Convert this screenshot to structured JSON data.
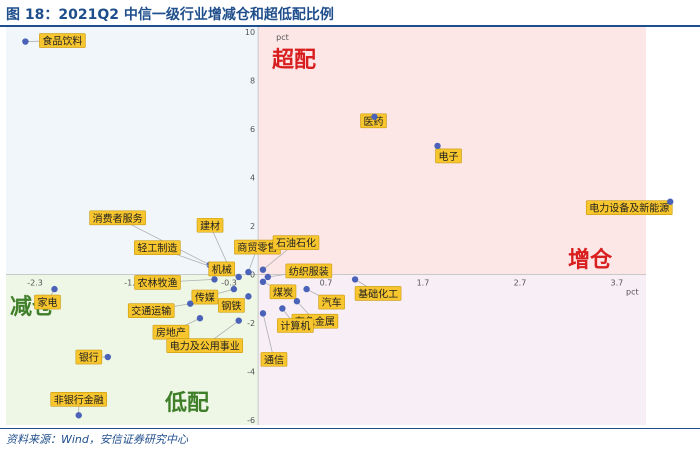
{
  "header": {
    "title": "图 18：2021Q2 中信一级行业增减仓和超低配比例"
  },
  "footer": {
    "source": "资料来源：Wind，安信证券研究中心"
  },
  "quadrants": {
    "overweight": "超配",
    "increase": "增仓",
    "decrease": "减仓",
    "underweight": "低配"
  },
  "colors": {
    "top_left": "#f1f6fb",
    "top_right": "#fde6e6",
    "bottom_left": "#eef6e6",
    "bottom_right": "#f7eef6",
    "point": "#4a63b8",
    "label_bg": "#f7c52d",
    "label_border": "#c99a10",
    "overweight_text": "#d81e1e",
    "increase_text": "#d81e1e",
    "decrease_text": "#3f7f2a",
    "underweight_text": "#3f7f2a"
  },
  "chart_data": {
    "type": "scatter",
    "title": "2021Q2 中信一级行业增减仓和超低配比例",
    "xlabel": "pct",
    "ylabel": "pct",
    "xlim": [
      -2.6,
      4.0
    ],
    "ylim": [
      -6.2,
      10.2
    ],
    "xticks": [
      -2.3,
      -1.3,
      -0.3,
      0.7,
      1.7,
      2.7,
      3.7
    ],
    "yticks": [
      -6,
      -4,
      -2,
      0,
      2,
      4,
      6,
      8,
      10
    ],
    "points": [
      {
        "name": "食品饮料",
        "x": -2.4,
        "y": 9.6
      },
      {
        "name": "医药",
        "x": 1.2,
        "y": 6.5
      },
      {
        "name": "电子",
        "x": 1.85,
        "y": 5.3
      },
      {
        "name": "电力设备及新能源",
        "x": 4.25,
        "y": 3.0
      },
      {
        "name": "消费者服务",
        "x": -0.5,
        "y": 0.4
      },
      {
        "name": "建材",
        "x": -0.3,
        "y": 0.3
      },
      {
        "name": "轻工制造",
        "x": -0.4,
        "y": 0.2
      },
      {
        "name": "商贸零售",
        "x": -0.1,
        "y": 0.1
      },
      {
        "name": "机械",
        "x": -0.2,
        "y": -0.1
      },
      {
        "name": "农林牧渔",
        "x": -0.45,
        "y": -0.2
      },
      {
        "name": "石油石化",
        "x": 0.05,
        "y": 0.2
      },
      {
        "name": "纺织服装",
        "x": 0.1,
        "y": -0.1
      },
      {
        "name": "煤炭",
        "x": 0.05,
        "y": -0.3
      },
      {
        "name": "传媒",
        "x": -0.25,
        "y": -0.6
      },
      {
        "name": "钢铁",
        "x": -0.1,
        "y": -0.9
      },
      {
        "name": "汽车",
        "x": 0.5,
        "y": -0.6
      },
      {
        "name": "基础化工",
        "x": 1.0,
        "y": -0.2
      },
      {
        "name": "有色金属",
        "x": 0.4,
        "y": -1.1
      },
      {
        "name": "计算机",
        "x": 0.25,
        "y": -1.4
      },
      {
        "name": "家电",
        "x": -2.1,
        "y": -0.6
      },
      {
        "name": "交通运输",
        "x": -0.7,
        "y": -1.2
      },
      {
        "name": "房地产",
        "x": -0.6,
        "y": -1.8
      },
      {
        "name": "电力及公用事业",
        "x": -0.2,
        "y": -1.9
      },
      {
        "name": "通信",
        "x": 0.05,
        "y": -1.6
      },
      {
        "name": "银行",
        "x": -1.55,
        "y": -3.4
      },
      {
        "name": "非银行金融",
        "x": -1.85,
        "y": -5.8
      }
    ]
  }
}
